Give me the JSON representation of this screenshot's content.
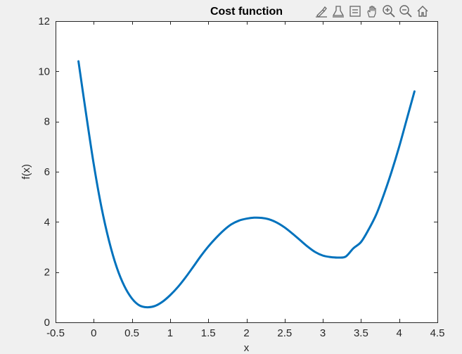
{
  "toolbar": {
    "icons": [
      "brush-icon",
      "data-tips-icon",
      "datatip-table-icon",
      "pan-icon",
      "zoom-in-icon",
      "zoom-out-icon",
      "home-icon"
    ]
  },
  "colors": {
    "line": "#0072BD",
    "axes_bg": "#ffffff",
    "figure_bg": "#f0f0f0",
    "axis": "#262626"
  },
  "chart_data": {
    "type": "line",
    "title": "Cost function",
    "xlabel": "x",
    "ylabel": "f(x)",
    "xlim": [
      -0.5,
      4.5
    ],
    "ylim": [
      0,
      12
    ],
    "xticks": [
      -0.5,
      0,
      0.5,
      1,
      1.5,
      2,
      2.5,
      3,
      3.5,
      4,
      4.5
    ],
    "xtick_labels": [
      "-0.5",
      "0",
      "0.5",
      "1",
      "1.5",
      "2",
      "2.5",
      "3",
      "3.5",
      "4",
      "4.5"
    ],
    "yticks": [
      0,
      2,
      4,
      6,
      8,
      10,
      12
    ],
    "ytick_labels": [
      "0",
      "2",
      "4",
      "6",
      "8",
      "10",
      "12"
    ],
    "grid": false,
    "series": [
      {
        "x": [
          -0.2,
          -0.1,
          0.0,
          0.1,
          0.2,
          0.3,
          0.4,
          0.5,
          0.6,
          0.7,
          0.8,
          0.9,
          1.0,
          1.1,
          1.2,
          1.3,
          1.4,
          1.5,
          1.6,
          1.7,
          1.8,
          1.9,
          2.0,
          2.1,
          2.2,
          2.3,
          2.4,
          2.5,
          2.6,
          2.7,
          2.8,
          2.9,
          3.0,
          3.1,
          3.2,
          3.3,
          3.4,
          3.5,
          3.6,
          3.7,
          3.8,
          3.9,
          4.0,
          4.1,
          4.2
        ],
        "y": [
          10.4,
          8.3,
          6.3,
          4.6,
          3.25,
          2.2,
          1.45,
          0.95,
          0.67,
          0.6,
          0.65,
          0.82,
          1.08,
          1.4,
          1.78,
          2.2,
          2.63,
          3.02,
          3.36,
          3.66,
          3.9,
          4.05,
          4.13,
          4.17,
          4.16,
          4.1,
          3.97,
          3.78,
          3.54,
          3.28,
          3.02,
          2.8,
          2.66,
          2.6,
          2.58,
          2.62,
          2.95,
          3.2,
          3.7,
          4.3,
          5.1,
          6.0,
          7.0,
          8.1,
          9.2
        ]
      }
    ]
  }
}
